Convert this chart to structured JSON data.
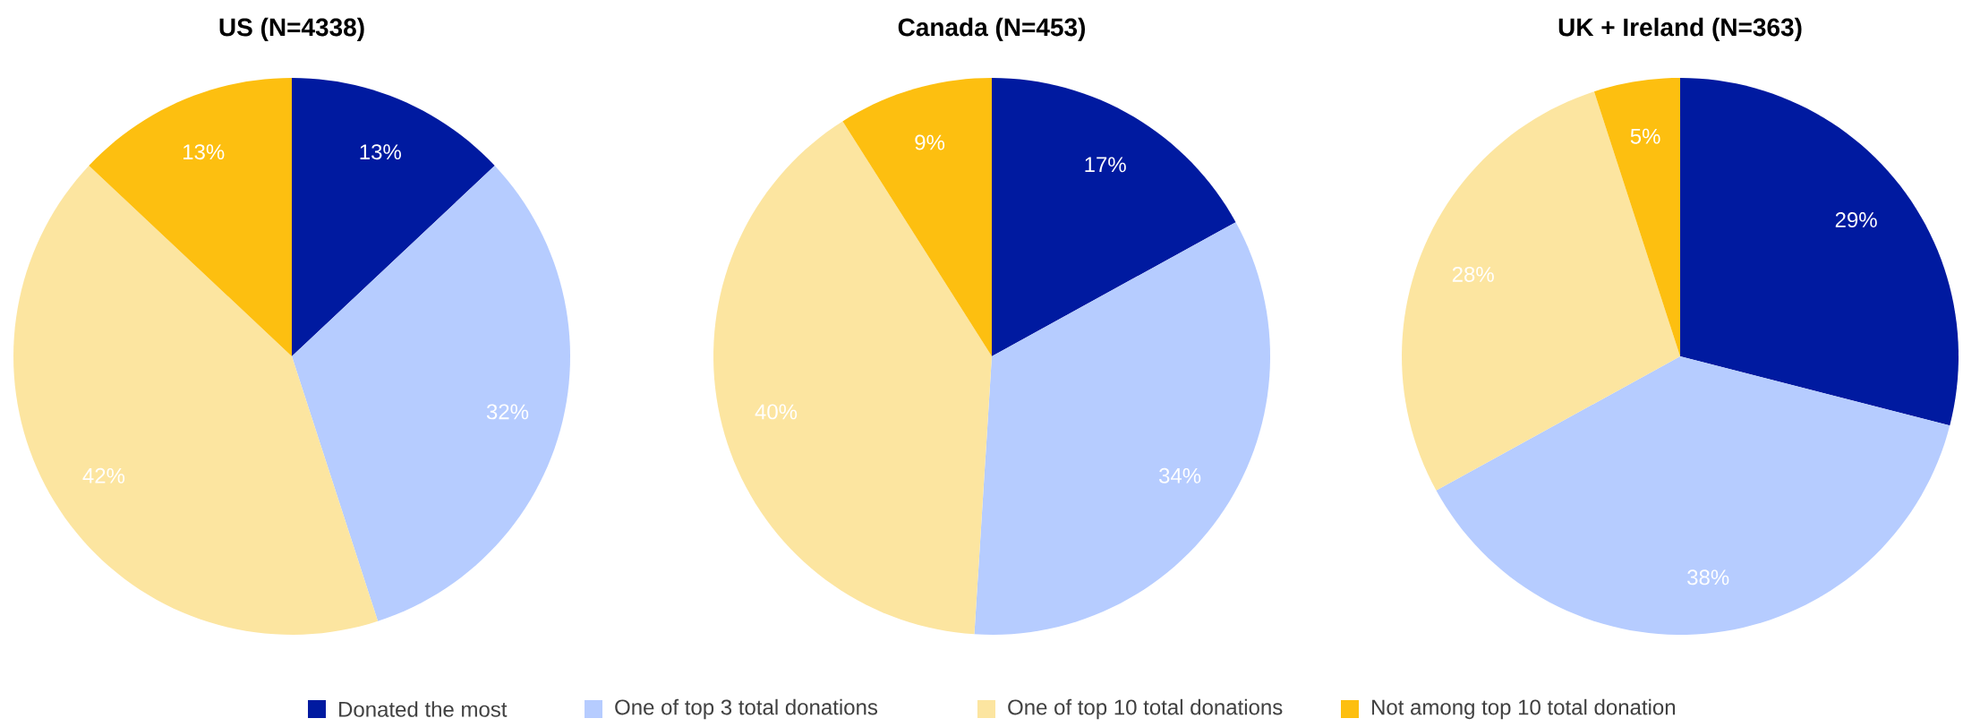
{
  "chart_data": [
    {
      "type": "pie",
      "title": "US (N=4338)",
      "categories": [
        "Donated the most",
        "One of top 3 total donations",
        "One of top 10 total donations",
        "Not among top 10 total donation"
      ],
      "values": [
        13,
        32,
        42,
        13
      ],
      "value_labels": [
        "13%",
        "32%",
        "42%",
        "13%"
      ],
      "colors": [
        "#001aa0",
        "#b6ccff",
        "#fce5a0",
        "#fdbf10"
      ],
      "legend": "bottom"
    },
    {
      "type": "pie",
      "title": "Canada (N=453)",
      "categories": [
        null,
        null,
        null,
        null
      ],
      "values": [
        17,
        34,
        40,
        9
      ],
      "value_labels": [
        "17%",
        "34%",
        "40%",
        "9%"
      ],
      "colors": [
        "#001aa0",
        "#b6ccff",
        "#fce5a0",
        "#fdbf10"
      ]
    },
    {
      "type": "pie",
      "title": "UK + Ireland (N=363)",
      "categories": [
        null,
        null,
        null,
        null
      ],
      "values": [
        29,
        38,
        28,
        5
      ],
      "value_labels": [
        "29%",
        "38%",
        "28%",
        "5%"
      ],
      "colors": [
        "#001aa0",
        "#b6ccff",
        "#fce5a0",
        "#fdbf10"
      ]
    }
  ]
}
